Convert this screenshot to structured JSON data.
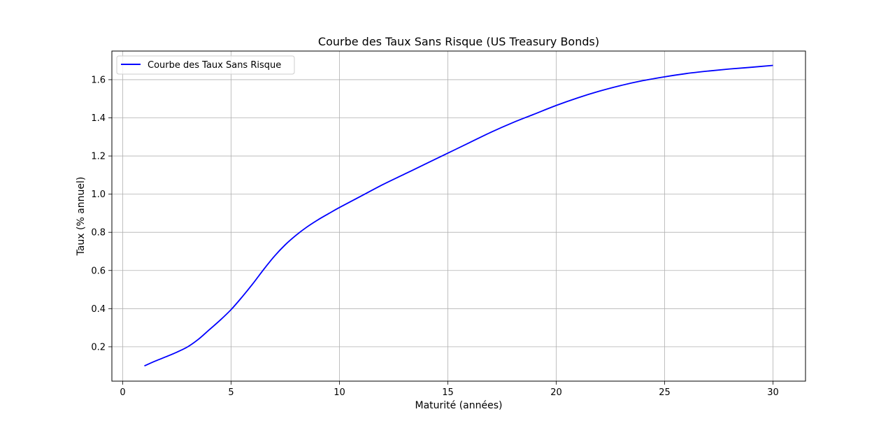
{
  "chart_data": {
    "type": "line",
    "title": "Courbe des Taux Sans Risque (US Treasury Bonds)",
    "xlabel": "Maturité (années)",
    "ylabel": "Taux (% annuel)",
    "xlim": [
      -0.5,
      31.5
    ],
    "ylim": [
      0.02,
      1.75
    ],
    "xticks": [
      0,
      5,
      10,
      15,
      20,
      25,
      30
    ],
    "xtick_labels": [
      "0",
      "5",
      "10",
      "15",
      "20",
      "25",
      "30"
    ],
    "yticks": [
      0.2,
      0.4,
      0.6,
      0.8,
      1.0,
      1.2,
      1.4,
      1.6
    ],
    "ytick_labels": [
      "0.2",
      "0.4",
      "0.6",
      "0.8",
      "1.0",
      "1.2",
      "1.4",
      "1.6"
    ],
    "grid": true,
    "legend_position": "top-left",
    "series": [
      {
        "name": "Courbe des Taux Sans Risque",
        "color": "#0000ff",
        "x": [
          1,
          1.5,
          2,
          2.5,
          3,
          3.5,
          4,
          4.5,
          5,
          5.5,
          6,
          6.5,
          7,
          7.5,
          8,
          8.5,
          9,
          9.5,
          10,
          11,
          12,
          13,
          14,
          15,
          16,
          17,
          18,
          19,
          20,
          21,
          22,
          23,
          24,
          25,
          26,
          27,
          28,
          29,
          30
        ],
        "values": [
          0.1,
          0.125,
          0.148,
          0.172,
          0.2,
          0.24,
          0.29,
          0.34,
          0.395,
          0.46,
          0.53,
          0.605,
          0.675,
          0.735,
          0.785,
          0.828,
          0.865,
          0.898,
          0.93,
          0.99,
          1.05,
          1.105,
          1.16,
          1.215,
          1.27,
          1.325,
          1.375,
          1.42,
          1.465,
          1.505,
          1.54,
          1.57,
          1.595,
          1.615,
          1.632,
          1.645,
          1.656,
          1.665,
          1.675
        ]
      }
    ]
  }
}
